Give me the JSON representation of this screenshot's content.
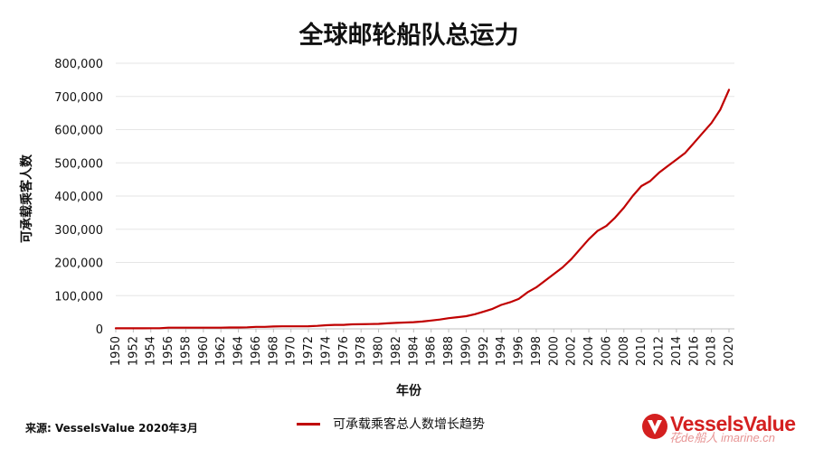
{
  "chart_data": {
    "type": "line",
    "title": "全球邮轮船队总运力",
    "xlabel": "年份",
    "ylabel": "可承载乘客人数",
    "x": [
      1950,
      1951,
      1952,
      1953,
      1954,
      1955,
      1956,
      1957,
      1958,
      1959,
      1960,
      1961,
      1962,
      1963,
      1964,
      1965,
      1966,
      1967,
      1968,
      1969,
      1970,
      1971,
      1972,
      1973,
      1974,
      1975,
      1976,
      1977,
      1978,
      1979,
      1980,
      1981,
      1982,
      1983,
      1984,
      1985,
      1986,
      1987,
      1988,
      1989,
      1990,
      1991,
      1992,
      1993,
      1994,
      1995,
      1996,
      1997,
      1998,
      1999,
      2000,
      2001,
      2002,
      2003,
      2004,
      2005,
      2006,
      2007,
      2008,
      2009,
      2010,
      2011,
      2012,
      2013,
      2014,
      2015,
      2016,
      2017,
      2018,
      2019,
      2020
    ],
    "x_ticks": [
      1950,
      1952,
      1954,
      1956,
      1958,
      1960,
      1962,
      1964,
      1966,
      1968,
      1970,
      1972,
      1974,
      1976,
      1978,
      1980,
      1982,
      1984,
      1986,
      1988,
      1990,
      1992,
      1994,
      1996,
      1998,
      2000,
      2002,
      2004,
      2006,
      2008,
      2010,
      2012,
      2014,
      2016,
      2018,
      2020
    ],
    "series": [
      {
        "name": "可承载乘客总人数增长趋势",
        "color": "#c00000",
        "values": [
          1500,
          1500,
          1500,
          1500,
          2000,
          2000,
          3500,
          3500,
          3500,
          3500,
          3500,
          3500,
          3500,
          4000,
          4000,
          4500,
          6000,
          6000,
          7000,
          7500,
          7500,
          7500,
          8000,
          9000,
          11000,
          12000,
          12000,
          13500,
          14000,
          14500,
          15000,
          16500,
          18000,
          19000,
          20000,
          22000,
          25000,
          28000,
          32000,
          35000,
          38000,
          44000,
          52000,
          60000,
          72000,
          80000,
          90000,
          110000,
          125000,
          145000,
          165000,
          185000,
          210000,
          240000,
          270000,
          295000,
          310000,
          335000,
          365000,
          400000,
          430000,
          445000,
          470000,
          490000,
          510000,
          530000,
          560000,
          590000,
          620000,
          660000,
          720000
        ]
      }
    ],
    "ylim": [
      0,
      800000
    ],
    "y_ticks": [
      0,
      100000,
      200000,
      300000,
      400000,
      500000,
      600000,
      700000,
      800000
    ],
    "y_tick_labels": [
      "0",
      "100,000",
      "200,000",
      "300,000",
      "400,000",
      "500,000",
      "600,000",
      "700,000",
      "800,000"
    ],
    "grid": "horizontal",
    "legend": "bottom-center"
  },
  "source_text": "来源: VesselsValue 2020年3月",
  "logo": {
    "text": "VesselsValue",
    "color": "#d42020",
    "watermark": "花de船人 imarine.cn"
  }
}
